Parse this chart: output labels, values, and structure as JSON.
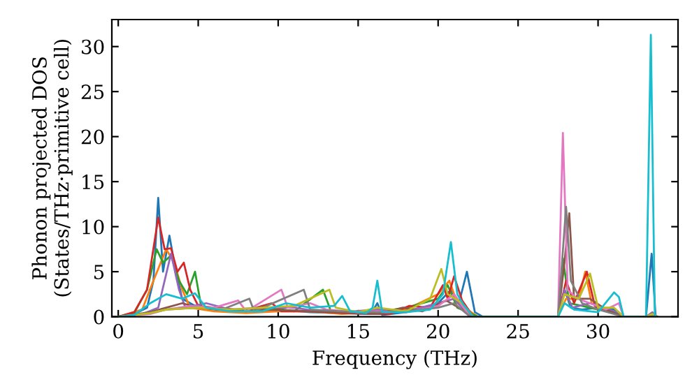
{
  "chart_data": {
    "type": "line",
    "xlabel": "Frequency (THz)",
    "ylabel": "Phonon projected DOS\n(States/THz·primitive cell)",
    "xlim": [
      -0.4,
      35
    ],
    "ylim": [
      0,
      33
    ],
    "xticks": [
      0,
      5,
      10,
      15,
      20,
      25,
      30
    ],
    "yticks": [
      0,
      5,
      10,
      15,
      20,
      25,
      30
    ],
    "grid": false,
    "legend": false,
    "marker": "none",
    "line_style": "solid",
    "series": [
      {
        "color": "#1f77b4",
        "x": [
          0,
          1,
          1.8,
          2.2,
          2.5,
          2.8,
          3.2,
          3.6,
          4,
          5,
          6,
          8,
          10,
          12,
          14,
          15.8,
          16.2,
          16.5,
          18,
          20,
          20.8,
          21.3,
          21.8,
          22.3,
          22.8,
          27.5,
          27.9,
          28.3,
          29,
          30,
          31,
          31.6,
          33,
          33.35,
          33.6,
          33.7
        ],
        "values": [
          0,
          0.3,
          1,
          4,
          13.2,
          5,
          9,
          5,
          2,
          1,
          0.8,
          0.5,
          0.8,
          0.5,
          0.4,
          0.3,
          1.5,
          0.2,
          0.5,
          1.5,
          3,
          1.5,
          5,
          0.5,
          0,
          0,
          3,
          1,
          0.8,
          1,
          0.8,
          0,
          0,
          7,
          0,
          0
        ]
      },
      {
        "color": "#ff7f0e",
        "x": [
          0,
          1.5,
          2.2,
          3,
          3.5,
          4,
          4.5,
          6,
          8,
          10,
          12,
          14,
          16.2,
          18,
          20,
          20.7,
          21.2,
          22.5,
          27.5,
          28,
          28.8,
          29.2,
          29.6,
          30.2
        ],
        "values": [
          0,
          0.8,
          4,
          7.5,
          6,
          3,
          1,
          0.6,
          0.4,
          0.6,
          0.6,
          0.3,
          0.5,
          0.8,
          2.5,
          4,
          1.5,
          0,
          0,
          2,
          2,
          5,
          1.5,
          1
        ]
      },
      {
        "color": "#2ca02c",
        "x": [
          0,
          1,
          1.8,
          2.4,
          2.8,
          3.3,
          3.8,
          4.3,
          4.8,
          5.2,
          6.5,
          8,
          9.5,
          11,
          12.8,
          13.3,
          15,
          16.2,
          18,
          20,
          20.6,
          21.2,
          22.5,
          27.5,
          27.8,
          28.2,
          29,
          30,
          31,
          31.6,
          33,
          33.4,
          33.7
        ],
        "values": [
          0,
          0.4,
          3,
          7.5,
          6,
          6.8,
          4,
          2.5,
          5,
          1,
          0.8,
          0.6,
          1,
          0.6,
          3,
          0.6,
          0.4,
          0.5,
          1,
          2,
          3.5,
          1,
          0,
          0,
          6.5,
          1.5,
          1.2,
          0.8,
          0.5,
          0,
          0,
          0.3,
          0
        ]
      },
      {
        "color": "#d62728",
        "x": [
          0,
          1,
          1.8,
          2.5,
          2.9,
          3.3,
          3.7,
          4.1,
          4.5,
          5,
          6,
          8,
          9.6,
          10.2,
          12,
          14,
          16.2,
          17,
          18.2,
          19.5,
          20.3,
          20.6,
          21,
          21.5,
          22.2,
          27.5,
          28,
          28.5,
          29.3,
          29.8,
          31
        ],
        "values": [
          0,
          0.5,
          3,
          11,
          7.5,
          7.6,
          5,
          6,
          3,
          1.2,
          1,
          0.7,
          1.5,
          0.6,
          0.6,
          0.4,
          0.3,
          0.3,
          1.2,
          1,
          3.5,
          2,
          4.5,
          1.8,
          0,
          0,
          4,
          1.5,
          5,
          1.2,
          0.5
        ]
      },
      {
        "color": "#9467bd",
        "x": [
          0,
          1.5,
          2.5,
          3.3,
          3.8,
          4.2,
          5.5,
          7,
          9,
          11,
          12.5,
          14,
          16.2,
          18,
          20,
          21,
          22,
          27.5,
          27.9,
          28.4,
          29.5,
          31,
          31.6,
          33,
          33.4,
          33.7
        ],
        "values": [
          0,
          0.3,
          1,
          7,
          3,
          1,
          1.5,
          0.8,
          1,
          1,
          0.6,
          0.5,
          0.8,
          0.6,
          1.5,
          2,
          0,
          0,
          3,
          1,
          1.5,
          0.6,
          0,
          0,
          0.5,
          0
        ]
      },
      {
        "color": "#8c564b",
        "x": [
          0,
          2,
          3,
          4,
          5,
          7,
          9,
          11,
          13,
          15,
          16.2,
          17.8,
          19,
          20.5,
          21.5,
          22.2,
          27.5,
          27.9,
          28.2,
          28.5,
          29.5,
          30.5,
          31.6,
          33,
          33.4,
          33.7
        ],
        "values": [
          0,
          0.5,
          1,
          1.5,
          1,
          0.7,
          0.8,
          0.7,
          0.5,
          0.4,
          0.3,
          1,
          0.6,
          1.8,
          0.8,
          0,
          0,
          6,
          11.5,
          2,
          2,
          0.8,
          0,
          0,
          0.2,
          0
        ]
      },
      {
        "color": "#e377c2",
        "x": [
          0,
          2,
          3,
          4.5,
          6,
          7.5,
          8,
          10.2,
          10.6,
          12,
          13,
          15,
          16.2,
          18,
          20,
          21,
          22,
          27.5,
          27.8,
          28.1,
          28.7,
          29.5,
          30.5,
          31.3,
          31.6
        ],
        "values": [
          0,
          0.3,
          0.8,
          1.2,
          1,
          1.8,
          0.6,
          3,
          1,
          1.5,
          0.8,
          0.5,
          0.6,
          0.5,
          1.2,
          2.5,
          0,
          0,
          20.4,
          3,
          2,
          1.5,
          0.8,
          1.5,
          0
        ]
      },
      {
        "color": "#7f7f7f",
        "x": [
          0,
          2,
          3,
          5,
          6.5,
          8.2,
          8.5,
          11.6,
          12,
          14,
          16.2,
          18,
          20,
          21,
          22,
          27.5,
          28,
          28.3,
          29,
          30,
          31.6,
          33,
          33.4,
          33.7
        ],
        "values": [
          0,
          0.4,
          0.8,
          1,
          0.8,
          2,
          0.6,
          3,
          0.8,
          0.6,
          0.5,
          0.6,
          1,
          1.5,
          0,
          0,
          12.2,
          4,
          1.5,
          0.8,
          0,
          0,
          0.2,
          0
        ]
      },
      {
        "color": "#bcbd22",
        "x": [
          0,
          2,
          3,
          5,
          7,
          9,
          11,
          13.2,
          13.6,
          15,
          16.2,
          18,
          19.5,
          20.2,
          20.6,
          21.5,
          22.2,
          27.5,
          27.9,
          28.8,
          29.5,
          30,
          31,
          31.6,
          33,
          33.4,
          33.7
        ],
        "values": [
          0,
          0.4,
          0.8,
          1,
          0.8,
          1,
          1.2,
          3,
          1,
          0.5,
          1,
          0.6,
          2,
          5.3,
          2.5,
          1.5,
          0,
          0,
          2.5,
          2,
          4.8,
          1,
          1,
          0,
          0,
          0.3,
          0
        ]
      },
      {
        "color": "#17becf",
        "x": [
          0,
          1,
          2,
          3,
          4,
          4.8,
          5.5,
          7,
          9,
          10.5,
          12,
          13.5,
          14,
          14.5,
          15.5,
          15.9,
          16.2,
          16.5,
          18,
          19.5,
          20.3,
          20.8,
          21.2,
          21.6,
          22.2,
          27.5,
          27.9,
          28.5,
          30,
          31,
          31.3,
          31.6,
          33,
          33.3,
          33.55,
          33.7
        ],
        "values": [
          0,
          0.2,
          1.5,
          2.5,
          2,
          2.6,
          1,
          0.6,
          0.6,
          1.5,
          1,
          1.2,
          2.3,
          0.6,
          0.4,
          1,
          4,
          0.5,
          0.5,
          0.8,
          2.5,
          8.3,
          2.5,
          1.3,
          0,
          0,
          1.5,
          0.8,
          0.5,
          2.7,
          2.2,
          0,
          0,
          31.3,
          0,
          0
        ]
      }
    ]
  }
}
